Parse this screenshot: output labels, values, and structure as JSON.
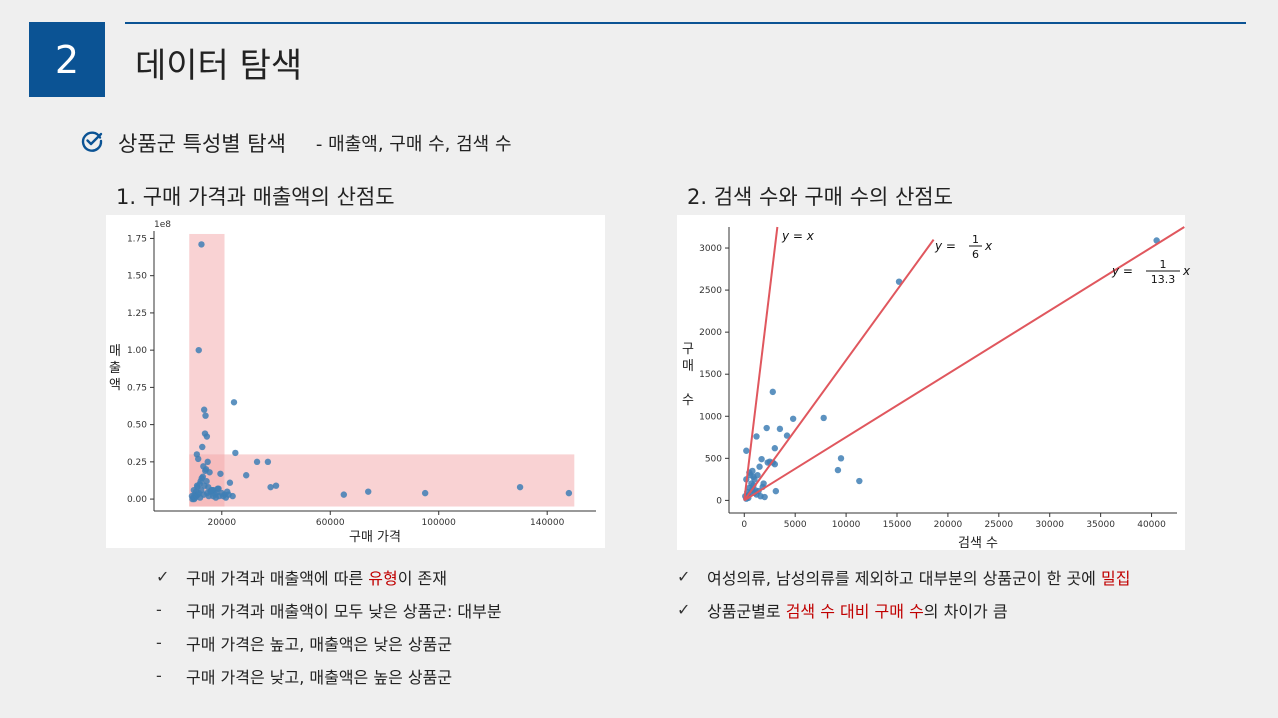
{
  "header": {
    "number": "2",
    "title": "데이터 탐색"
  },
  "section": {
    "label": "상품군 특성별 탐색",
    "sub": "- 매출액, 구매 수, 검색 수"
  },
  "left": {
    "subtitle": "1. 구매 가격과 매출액의 산점도",
    "bullets": [
      {
        "mark": "✓",
        "parts": [
          "구매 가격과 매출액에 따른 ",
          "유형",
          "이 존재"
        ]
      },
      {
        "mark": "-",
        "parts": [
          "구매 가격과 매출액이 모두 낮은 상품군: 대부분"
        ]
      },
      {
        "mark": "-",
        "parts": [
          "구매 가격은 높고, 매출액은 낮은 상품군"
        ]
      },
      {
        "mark": "-",
        "parts": [
          "구매 가격은 낮고, 매출액은 높은 상품군"
        ]
      }
    ]
  },
  "right": {
    "subtitle": "2. 검색 수와 구매 수의 산점도",
    "bullets": [
      {
        "mark": "✓",
        "parts": [
          "여성의류, 남성의류를 제외하고 대부분의 상품군이 한 곳에 ",
          "밀집"
        ]
      },
      {
        "mark": "✓",
        "parts": [
          "상품군별로 ",
          "검색 수 대비 구매 수",
          "의 차이가 큼"
        ]
      }
    ]
  },
  "chart_data": [
    {
      "type": "scatter",
      "xlabel": "구매 가격",
      "ylabel": "매출액",
      "y_multiplier": "1e8",
      "xlim": [
        -5000,
        158000
      ],
      "ylim": [
        -0.08,
        1.8
      ],
      "x_ticks": [
        20000,
        60000,
        100000,
        140000
      ],
      "y_ticks": [
        0.0,
        0.25,
        0.5,
        0.75,
        1.0,
        1.25,
        1.5,
        1.75
      ],
      "highlights": [
        {
          "x": [
            8000,
            21000
          ],
          "y": [
            -0.05,
            1.78
          ]
        },
        {
          "x": [
            8000,
            150000
          ],
          "y": [
            -0.05,
            0.3
          ]
        }
      ],
      "x": [
        12500,
        11500,
        13500,
        14000,
        13800,
        14500,
        24500,
        25000,
        29000,
        19500,
        9000,
        10000,
        10500,
        11000,
        11800,
        12200,
        13000,
        14200,
        15000,
        16000,
        17000,
        18000,
        19000,
        20000,
        21000,
        22000,
        23000,
        9500,
        10800,
        12800,
        13200,
        14800,
        15500,
        16500,
        17500,
        18500,
        20500,
        21500,
        24000,
        33000,
        37000,
        38000,
        40000,
        65000,
        74000,
        95000,
        130000,
        148000,
        9200,
        9800,
        10200,
        10600,
        11200,
        11600,
        12400,
        13600,
        14400,
        15800,
        16800,
        17800,
        18800,
        22500,
        11300,
        12600,
        13900,
        9700,
        10900,
        12000,
        13400,
        14600,
        15200,
        16200
      ],
      "y": [
        1.71,
        1.0,
        0.6,
        0.56,
        0.44,
        0.42,
        0.65,
        0.31,
        0.16,
        0.17,
        0.02,
        0.03,
        0.05,
        0.08,
        0.1,
        0.12,
        0.15,
        0.2,
        0.08,
        0.05,
        0.06,
        0.04,
        0.02,
        0.04,
        0.03,
        0.05,
        0.11,
        0.01,
        0.3,
        0.35,
        0.22,
        0.25,
        0.18,
        0.06,
        0.03,
        0.07,
        0.02,
        0.01,
        0.02,
        0.25,
        0.25,
        0.08,
        0.09,
        0.03,
        0.05,
        0.04,
        0.08,
        0.04,
        0.0,
        0.0,
        0.01,
        0.02,
        0.03,
        0.04,
        0.06,
        0.09,
        0.12,
        0.05,
        0.02,
        0.01,
        0.07,
        0.03,
        0.27,
        0.14,
        0.19,
        0.06,
        0.09,
        0.01,
        0.03,
        0.04,
        0.02,
        0.06
      ]
    },
    {
      "type": "scatter",
      "xlabel": "검색 수",
      "ylabel": "구매 수",
      "xlim": [
        -1500,
        42500
      ],
      "ylim": [
        -150,
        3250
      ],
      "x_ticks": [
        0,
        5000,
        10000,
        15000,
        20000,
        25000,
        30000,
        35000,
        40000
      ],
      "y_ticks": [
        0,
        500,
        1000,
        1500,
        2000,
        2500,
        3000
      ],
      "lines": [
        {
          "label": "y = x",
          "slope": 1,
          "num": "",
          "den": ""
        },
        {
          "label": "y = 1/6 x",
          "slope": 0.1667,
          "num": "1",
          "den": "6"
        },
        {
          "label": "y = 1/13.3 x",
          "slope": 0.0752,
          "num": "1",
          "den": "13.3"
        }
      ],
      "x": [
        40500,
        15200,
        2800,
        4800,
        7800,
        2200,
        3500,
        2500,
        4200,
        3000,
        1200,
        9500,
        11300,
        9200,
        3100,
        2800,
        200,
        1700,
        3000,
        2300,
        1900,
        600,
        800,
        1000,
        1300,
        1500,
        100,
        300,
        500,
        700,
        900,
        1100,
        400,
        600,
        800,
        1000,
        200,
        400,
        1200,
        1400,
        1600,
        1800,
        2000,
        200,
        500,
        900
      ],
      "y": [
        3090,
        2600,
        1290,
        970,
        980,
        860,
        850,
        460,
        770,
        620,
        760,
        500,
        230,
        360,
        110,
        450,
        590,
        490,
        430,
        450,
        200,
        300,
        350,
        250,
        300,
        400,
        50,
        100,
        150,
        200,
        180,
        120,
        60,
        80,
        130,
        90,
        20,
        30,
        70,
        110,
        50,
        160,
        40,
        250,
        330,
        280
      ]
    }
  ]
}
